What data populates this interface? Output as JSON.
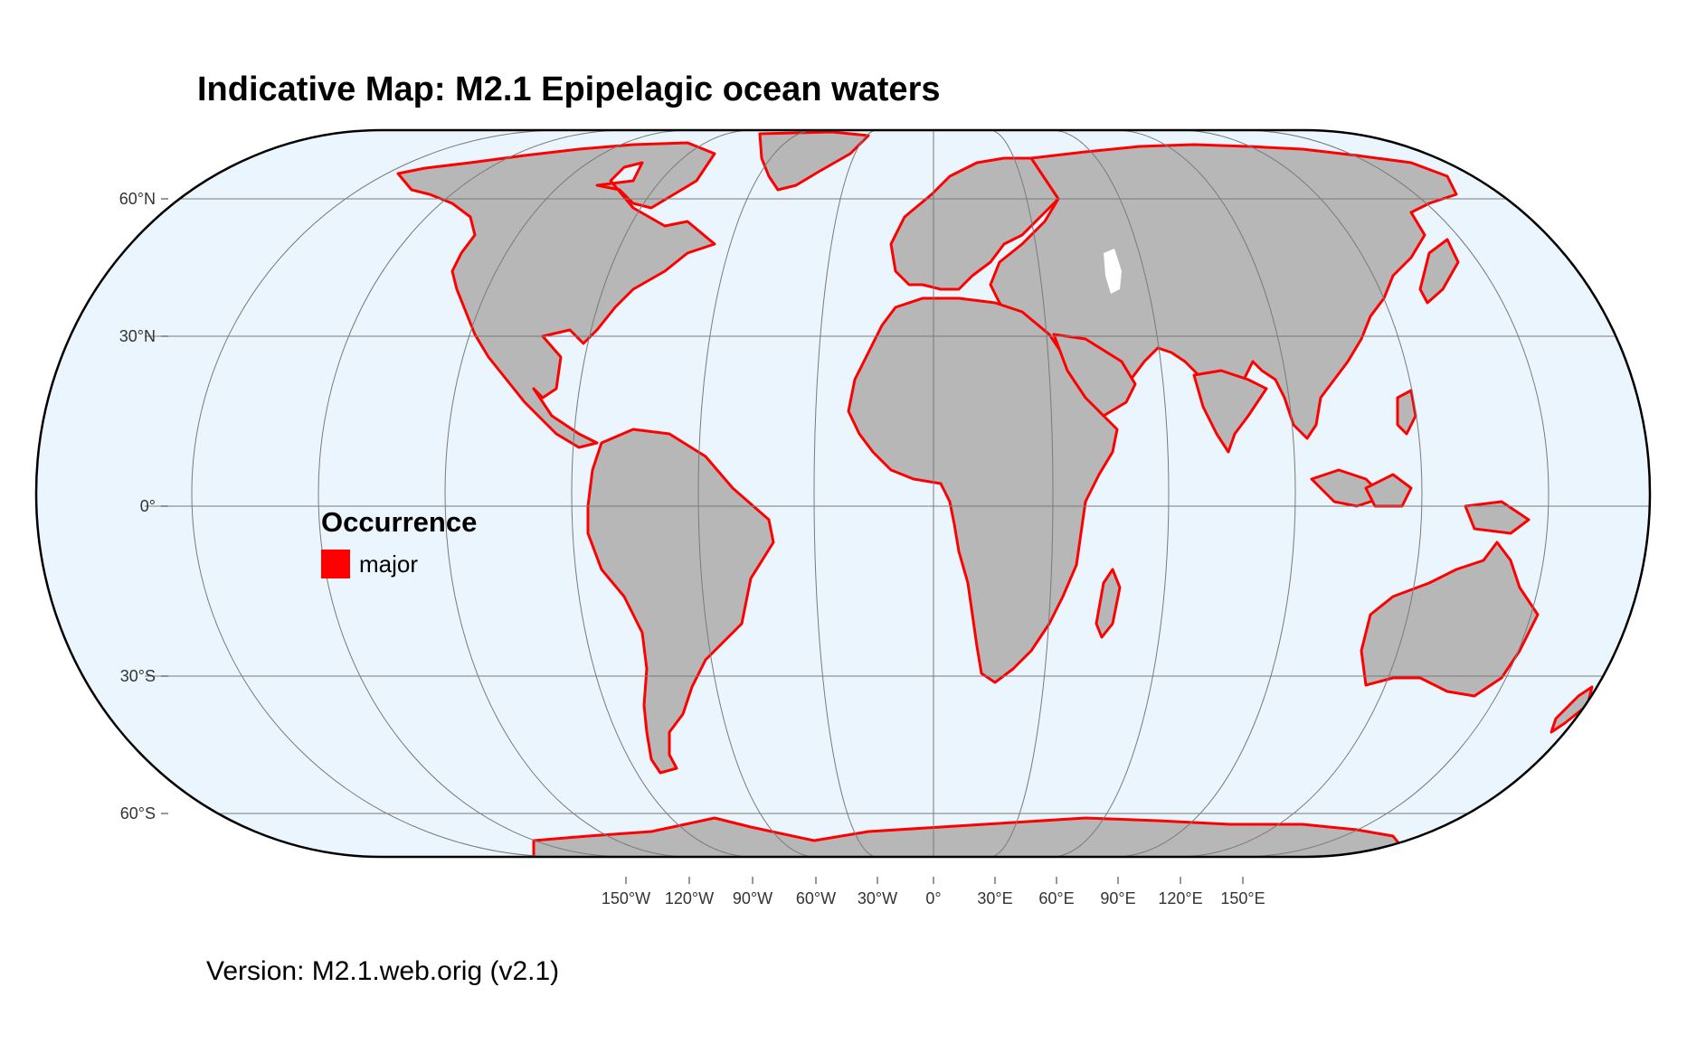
{
  "title": "Indicative Map: M2.1 Epipelagic ocean waters",
  "version": "Version: M2.1.web.orig (v2.1)",
  "legend": {
    "title": "Occurrence",
    "items": [
      {
        "label": "major",
        "color": "#ff0000"
      }
    ]
  },
  "axes": {
    "lat_labels": [
      "60°N",
      "30°N",
      "0°",
      "30°S",
      "60°S"
    ],
    "lon_labels": [
      "150°W",
      "120°W",
      "90°W",
      "60°W",
      "30°W",
      "0°",
      "30°E",
      "60°E",
      "90°E",
      "120°E",
      "150°E"
    ]
  },
  "colors": {
    "ocean": "#eaf5fd",
    "land": "#b7b7b7",
    "occurrence": "#ff0000",
    "graticule": "#7a7a7a",
    "border": "#000000"
  },
  "projection": "Eckert IV"
}
